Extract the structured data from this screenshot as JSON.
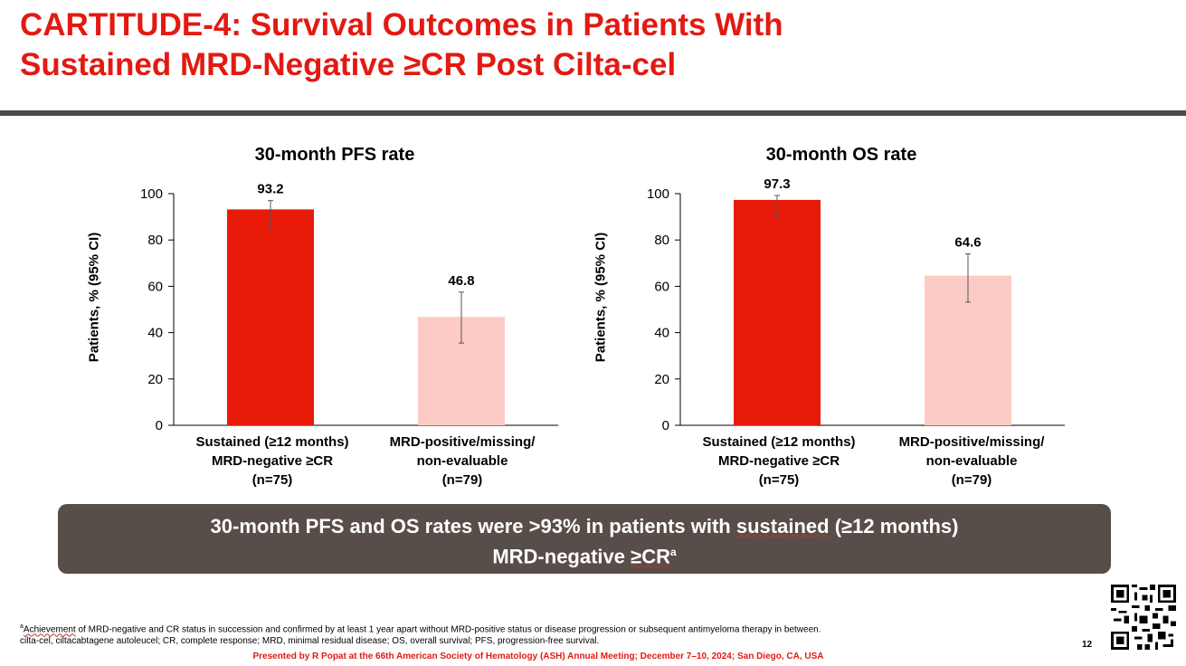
{
  "title_line1": "CARTITUDE-4: Survival Outcomes in Patients With",
  "title_line2": "Sustained MRD-Negative ≥CR Post Cilta-cel",
  "colors": {
    "accent": "#e21a12",
    "bar_primary": "#e81a0a",
    "bar_secondary": "#fccbc6",
    "banner": "#574e49"
  },
  "chart_data": [
    {
      "type": "bar",
      "title": "30-month PFS rate",
      "ylabel": "Patients, % (95% CI)",
      "xlabel": "",
      "ylim": [
        0,
        100
      ],
      "yticks": [
        "0",
        "20",
        "40",
        "60",
        "80",
        "100"
      ],
      "categories": [
        [
          "Sustained (≥12 months)",
          "MRD-negative ≥CR",
          "(n=75)"
        ],
        [
          "MRD-positive/missing/",
          "non-evaluable",
          "(n=79)"
        ]
      ],
      "values": [
        93.2,
        46.8
      ],
      "value_labels": [
        "93.2",
        "46.8"
      ],
      "ci": [
        [
          84.5,
          97.0
        ],
        [
          35.5,
          57.5
        ]
      ],
      "grid": false
    },
    {
      "type": "bar",
      "title": "30-month OS rate",
      "ylabel": "Patients, % (95% CI)",
      "xlabel": "",
      "ylim": [
        0,
        100
      ],
      "yticks": [
        "0",
        "20",
        "40",
        "60",
        "80",
        "100"
      ],
      "categories": [
        [
          "Sustained (≥12 months)",
          "MRD-negative ≥CR",
          "(n=75)"
        ],
        [
          "MRD-positive/missing/",
          "non-evaluable",
          "(n=79)"
        ]
      ],
      "values": [
        97.3,
        64.6
      ],
      "value_labels": [
        "97.3",
        "64.6"
      ],
      "ci": [
        [
          90.0,
          99.2
        ],
        [
          53.2,
          74.0
        ]
      ],
      "grid": false
    }
  ],
  "banner": {
    "line1_pre": "30-month PFS and OS rates were >93% in patients with ",
    "line1_squiggle": "sustained",
    "line1_post": " (≥12 months)",
    "line2_pre": "MRD-negative ",
    "line2_squiggle": "≥CR",
    "line2_sup": "a"
  },
  "footnote": {
    "sup": "a",
    "squiggle": "Achievement",
    "line1_rest": " of MRD-negative and CR status in succession and confirmed by at least 1 year apart without MRD-positive status or disease progression or subsequent antimyeloma therapy in between.",
    "line2": "cilta-cel, ciltacabtagene autoleucel; CR, complete response; MRD, minimal residual disease; OS, overall survival; PFS, progression-free survival."
  },
  "presenter": "Presented by R Popat at the 66th American Society of Hematology (ASH) Annual Meeting; December 7–10, 2024; San Diego, CA, USA",
  "page_number": "12",
  "qr_icon": "qr-code-icon"
}
